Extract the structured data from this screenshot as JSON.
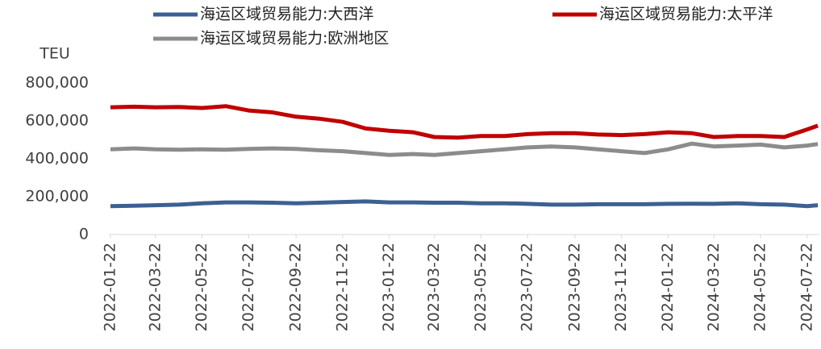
{
  "chart_data": {
    "type": "line",
    "y_label": "TEU",
    "x": [
      "2022-01-22",
      "2022-02-22",
      "2022-03-22",
      "2022-04-22",
      "2022-05-22",
      "2022-06-22",
      "2022-07-22",
      "2022-08-22",
      "2022-09-22",
      "2022-10-22",
      "2022-11-22",
      "2022-12-22",
      "2023-01-22",
      "2023-02-22",
      "2023-03-22",
      "2023-04-22",
      "2023-05-22",
      "2023-06-22",
      "2023-07-22",
      "2023-08-22",
      "2023-09-22",
      "2023-10-22",
      "2023-11-22",
      "2023-12-22",
      "2024-01-22",
      "2024-02-22",
      "2024-03-22",
      "2024-04-22",
      "2024-05-22",
      "2024-06-22",
      "2024-07-22",
      "2024-08-05"
    ],
    "series": [
      {
        "name": "海运区域贸易能力:大西洋",
        "color": "#3c6091",
        "values": [
          150000,
          152000,
          155000,
          158000,
          165000,
          170000,
          170000,
          168000,
          165000,
          168000,
          172000,
          175000,
          170000,
          170000,
          168000,
          168000,
          165000,
          165000,
          162000,
          158000,
          158000,
          160000,
          160000,
          160000,
          162000,
          163000,
          162000,
          165000,
          160000,
          158000,
          150000,
          155000
        ]
      },
      {
        "name": "海运区域贸易能力:太平洋",
        "color": "#c00000",
        "values": [
          672000,
          675000,
          672000,
          673000,
          668000,
          678000,
          655000,
          645000,
          622000,
          612000,
          595000,
          560000,
          548000,
          540000,
          515000,
          512000,
          520000,
          520000,
          530000,
          535000,
          535000,
          528000,
          525000,
          530000,
          540000,
          535000,
          515000,
          520000,
          520000,
          515000,
          555000,
          575000
        ]
      },
      {
        "name": "海运区域贸易能力:欧洲地区",
        "color": "#8c8c8c",
        "values": [
          450000,
          455000,
          450000,
          448000,
          450000,
          448000,
          452000,
          455000,
          452000,
          445000,
          440000,
          430000,
          420000,
          425000,
          420000,
          430000,
          440000,
          450000,
          460000,
          465000,
          460000,
          450000,
          440000,
          430000,
          450000,
          480000,
          465000,
          470000,
          475000,
          460000,
          470000,
          478000
        ]
      }
    ],
    "xlim": [
      "2022-01-20",
      "2024-08-07"
    ],
    "xticks": [
      "2022-01-22",
      "2022-03-22",
      "2022-05-22",
      "2022-07-22",
      "2022-09-22",
      "2022-11-22",
      "2023-01-22",
      "2023-03-22",
      "2023-05-22",
      "2023-07-22",
      "2023-09-22",
      "2023-11-22",
      "2024-01-22",
      "2024-03-22",
      "2024-05-22",
      "2024-07-22"
    ],
    "ylim": [
      0,
      800000
    ],
    "yticks": [
      0,
      {
        "value": 200000,
        "label": "200,000"
      },
      {
        "value": 400000,
        "label": "400,000"
      },
      {
        "value": 600000,
        "label": "600,000"
      },
      {
        "value": 800000,
        "label": "800,000"
      }
    ],
    "legend": "top"
  }
}
